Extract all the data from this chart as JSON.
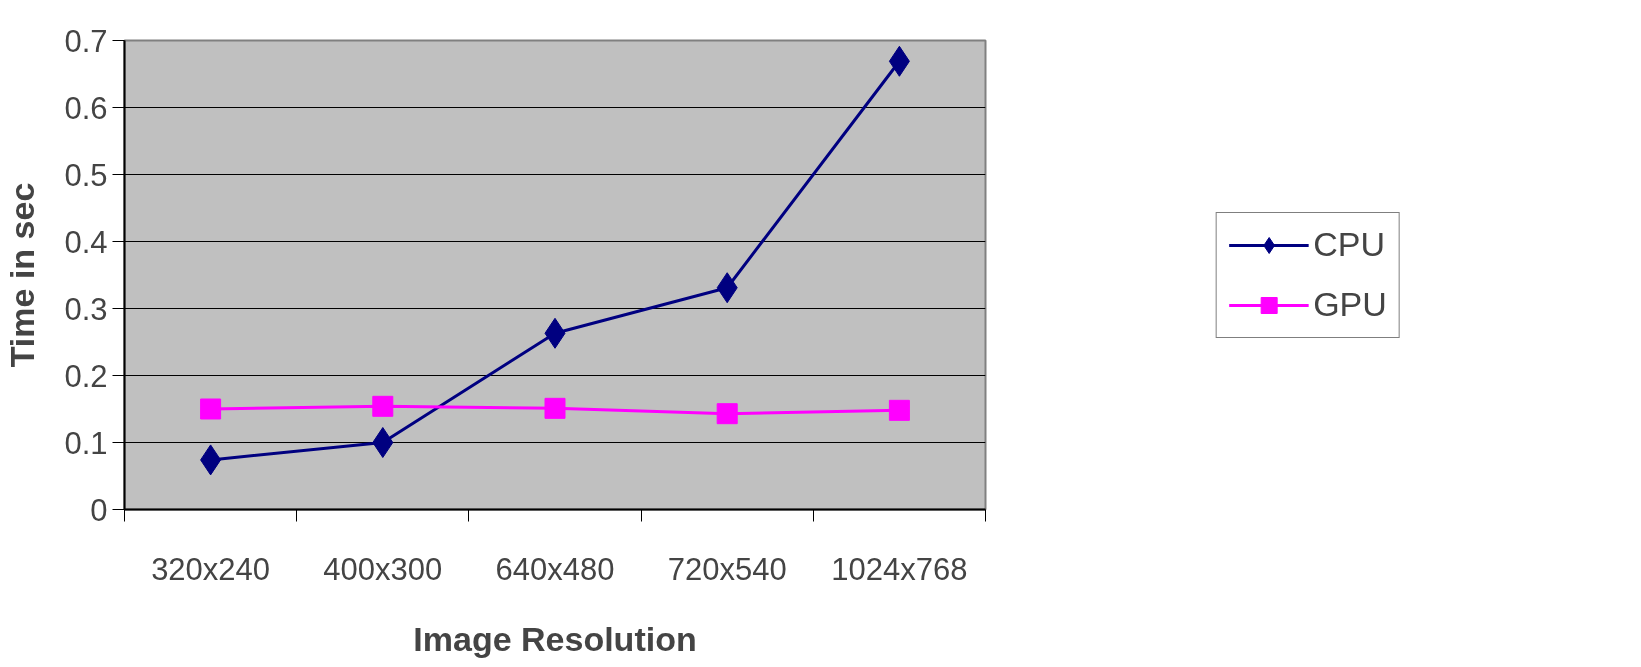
{
  "chart_data": {
    "type": "line",
    "xlabel": "Image Resolution",
    "ylabel": "Time in sec",
    "categories": [
      "320x240",
      "400x300",
      "640x480",
      "720x540",
      "1024x768"
    ],
    "series": [
      {
        "name": "CPU",
        "color": "#000080",
        "marker": "diamond",
        "values": [
          0.074,
          0.1,
          0.263,
          0.331,
          0.669
        ]
      },
      {
        "name": "GPU",
        "color": "#ff00ff",
        "marker": "square",
        "values": [
          0.15,
          0.154,
          0.151,
          0.143,
          0.148
        ]
      }
    ],
    "ylim": [
      0,
      0.7
    ],
    "yticks": [
      0,
      0.1,
      0.2,
      0.3,
      0.4,
      0.5,
      0.6,
      0.7
    ],
    "grid": "y",
    "legend": "right",
    "line_style": "solid"
  }
}
